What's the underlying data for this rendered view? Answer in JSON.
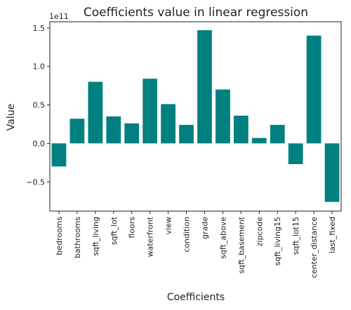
{
  "chart_data": {
    "type": "bar",
    "title": "Coefficients value in linear regression",
    "xlabel": "Coefficients",
    "ylabel": "Value",
    "y_scale_label": "1e11",
    "ylim": [
      -0.88,
      1.58
    ],
    "yticks": [
      -0.5,
      0.0,
      0.5,
      1.0,
      1.5
    ],
    "ytick_labels": [
      "−0.5",
      "0.0",
      "0.5",
      "1.0",
      "1.5"
    ],
    "grid": false,
    "bar_color": "#008080",
    "categories": [
      "bedrooms",
      "bathrooms",
      "sqft_living",
      "sqft_lot",
      "floors",
      "waterfront",
      "view",
      "condition",
      "grade",
      "sqft_above",
      "sqft_basement",
      "zipcode",
      "sqft_living15",
      "sqft_lot15",
      "center_distance",
      "last_fixed"
    ],
    "values": [
      -0.3,
      0.32,
      0.8,
      0.35,
      0.26,
      0.84,
      0.51,
      0.24,
      1.47,
      0.7,
      0.36,
      0.07,
      0.24,
      -0.27,
      1.4,
      -0.76
    ]
  }
}
